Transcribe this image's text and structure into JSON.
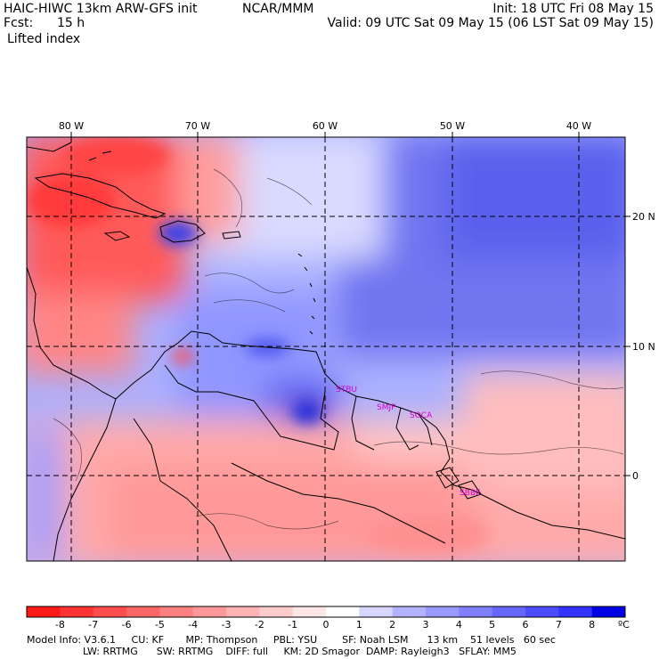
{
  "header": {
    "model": "HAIC-HIWC 13km ARW-GFS init",
    "org": "NCAR/MMM",
    "init": "Init: 18 UTC Fri 08 May 15",
    "fcst_label": "Fcst:",
    "fcst_value": "15 h",
    "valid": "Valid: 09 UTC Sat 09 May 15 (06 LST Sat 09 May 15)",
    "field": "Lifted index"
  },
  "map": {
    "lon_labels": [
      "80 W",
      "70 W",
      "60 W",
      "50 W",
      "40 W"
    ],
    "lat_labels": [
      "20 N",
      "10 N",
      "0"
    ],
    "stations": [
      "STBU",
      "SMJP",
      "SOCA",
      "SBBE"
    ]
  },
  "legend": {
    "values": [
      "-8",
      "-7",
      "-6",
      "-5",
      "-4",
      "-3",
      "-2",
      "-1",
      "0",
      "1",
      "2",
      "3",
      "4",
      "5",
      "6",
      "7",
      "8"
    ],
    "unit": "ºC",
    "colors": [
      "#ff1a1a",
      "#ff3333",
      "#ff4d4d",
      "#ff6666",
      "#ff8080",
      "#ff9999",
      "#ffb3b3",
      "#ffcccc",
      "#ffe6e6",
      "#ffffff",
      "#d6d6ff",
      "#b3b3ff",
      "#9999ff",
      "#8080ff",
      "#6666ff",
      "#4d4dff",
      "#3333ff",
      "#0000e6"
    ]
  },
  "footer": {
    "line1": "Model Info: V3.6.1     CU: KF       MP: Thompson     PBL: YSU        SF: Noah LSM      13 km    51 levels   60 sec",
    "line2": "                  LW: RRTMG      SW: RRTMG    DIFF: full     KM: 2D Smagor  DAMP: Rayleigh3   SFLAY: MM5"
  }
}
